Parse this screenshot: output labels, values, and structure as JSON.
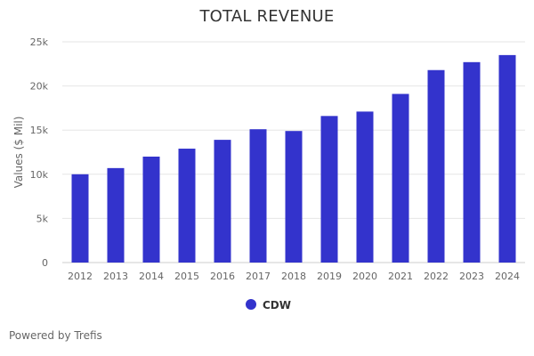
{
  "chart_data": {
    "type": "bar",
    "title": "TOTAL REVENUE",
    "ylabel": "Values ($ Mil)",
    "xlabel": "",
    "categories": [
      "2012",
      "2013",
      "2014",
      "2015",
      "2016",
      "2017",
      "2018",
      "2019",
      "2020",
      "2021",
      "2022",
      "2023",
      "2024"
    ],
    "series": [
      {
        "name": "CDW",
        "values": [
          10000,
          10700,
          12000,
          12900,
          13900,
          15100,
          14900,
          16600,
          17100,
          19100,
          21800,
          22700,
          23500
        ]
      }
    ],
    "ylim": [
      0,
      25000
    ],
    "yticks": [
      0,
      5000,
      10000,
      15000,
      20000,
      25000
    ],
    "ytick_labels": [
      "0",
      "5k",
      "10k",
      "15k",
      "20k",
      "25k"
    ],
    "grid": true,
    "legend_position": "bottom-center",
    "colors": {
      "bar": "#3333cc",
      "grid": "#e6e6e6",
      "axis": "#cccccc"
    }
  },
  "footer": {
    "credit": "Powered by Trefis"
  }
}
